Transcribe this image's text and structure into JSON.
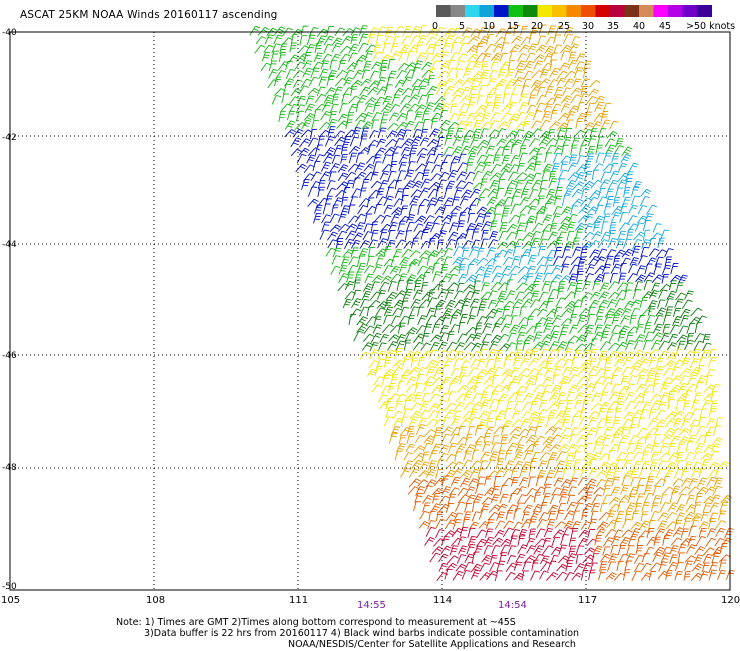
{
  "title": "ASCAT 25KM NOAA Winds 20160117 ascending",
  "legend": {
    "labels": [
      "0",
      "5",
      "10",
      "15",
      "20",
      "25",
      "30",
      "35",
      "40",
      "45",
      ">50 knots"
    ],
    "colors": [
      "#5a5a5a",
      "#888888",
      "#2ed7ee",
      "#10a4d8",
      "#0015c8",
      "#12bf12",
      "#0e8a0e",
      "#f3e800",
      "#f8c000",
      "#f58800",
      "#ef5000",
      "#d40000",
      "#b8003c",
      "#7b3418",
      "#d58a5a",
      "#ff00ff",
      "#b400e6",
      "#6e00c8",
      "#3c0096"
    ]
  },
  "map": {
    "lat_ticks": [
      "-40",
      "-42",
      "-44",
      "-46",
      "-48",
      "-50"
    ],
    "lon_ticks": [
      "105",
      "108",
      "111",
      "114",
      "117",
      "120"
    ],
    "time_labels": [
      "14:55",
      "14:54"
    ],
    "grid": "dotted",
    "swath_colors": {
      "yellow": "#f2e400",
      "orange": "#e7a000",
      "green": "#15b515",
      "dark_green": "#0b7a0b",
      "blue": "#0010c8",
      "cyan": "#14a8dc",
      "red_orange": "#e05a00",
      "crimson": "#c40030"
    }
  },
  "notes": {
    "line1": "Note: 1) Times are GMT 2)Times along bottom correspond to measurement at ~45S",
    "line2": "3)Data buffer is 22 hrs from 20160117 4) Black wind barbs indicate possible contamination",
    "line3": "NOAA/NESDIS/Center for Satellite Applications and Research"
  }
}
